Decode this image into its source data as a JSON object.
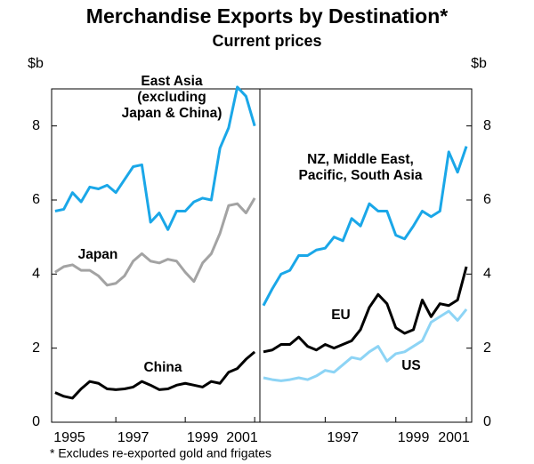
{
  "title": "Merchandise Exports by Destination*",
  "subtitle": "Current prices",
  "footnote": "*    Excludes re-exported gold and frigates",
  "chart_data": [
    {
      "type": "line",
      "y_label": "$b",
      "axis_side": "left",
      "xlim": [
        1995.15,
        2001.15
      ],
      "xticks": [
        1995,
        1997,
        1999,
        2001
      ],
      "ylim": [
        0,
        9
      ],
      "yticks": [
        0,
        2,
        4,
        6,
        8
      ],
      "x": [
        1995.25,
        1995.5,
        1995.75,
        1996,
        1996.25,
        1996.5,
        1996.75,
        1997,
        1997.25,
        1997.5,
        1997.75,
        1998,
        1998.25,
        1998.5,
        1998.75,
        1999,
        1999.25,
        1999.5,
        1999.75,
        2000,
        2000.25,
        2000.5,
        2000.75,
        2001
      ],
      "series": [
        {
          "name": "East Asia\n(excluding\nJapan & China)",
          "color": "#1aa7e8",
          "values": [
            5.7,
            5.75,
            6.2,
            5.95,
            6.35,
            6.3,
            6.4,
            6.2,
            6.55,
            6.9,
            6.95,
            5.4,
            5.65,
            5.2,
            5.7,
            5.7,
            5.95,
            6.05,
            6.0,
            7.4,
            7.95,
            9.05,
            8.8,
            8.0
          ]
        },
        {
          "name": "Japan",
          "color": "#a3a3a3",
          "values": [
            4.05,
            4.2,
            4.25,
            4.1,
            4.1,
            3.95,
            3.7,
            3.75,
            3.95,
            4.35,
            4.55,
            4.35,
            4.3,
            4.4,
            4.35,
            4.05,
            3.8,
            4.3,
            4.55,
            5.1,
            5.85,
            5.9,
            5.65,
            6.05
          ]
        },
        {
          "name": "China",
          "color": "#000000",
          "values": [
            0.8,
            0.7,
            0.65,
            0.9,
            1.1,
            1.05,
            0.9,
            0.88,
            0.9,
            0.95,
            1.1,
            1.0,
            0.88,
            0.9,
            1.0,
            1.05,
            1.0,
            0.95,
            1.1,
            1.05,
            1.35,
            1.45,
            1.7,
            1.9
          ]
        }
      ]
    },
    {
      "type": "line",
      "y_label": "$b",
      "axis_side": "right",
      "xlim": [
        1995.15,
        2001.15
      ],
      "xticks": [
        1997,
        1999,
        2001
      ],
      "ylim": [
        0,
        9
      ],
      "yticks": [
        0,
        2,
        4,
        6,
        8
      ],
      "x": [
        1995.25,
        1995.5,
        1995.75,
        1996,
        1996.25,
        1996.5,
        1996.75,
        1997,
        1997.25,
        1997.5,
        1997.75,
        1998,
        1998.25,
        1998.5,
        1998.75,
        1999,
        1999.25,
        1999.5,
        1999.75,
        2000,
        2000.25,
        2000.5,
        2000.75,
        2001
      ],
      "series": [
        {
          "name": "NZ, Middle East,\nPacific, South Asia",
          "color": "#1aa7e8",
          "values": [
            3.15,
            3.6,
            4.0,
            4.1,
            4.5,
            4.5,
            4.65,
            4.7,
            5.0,
            4.9,
            5.5,
            5.3,
            5.9,
            5.7,
            5.7,
            5.05,
            4.95,
            5.3,
            5.7,
            5.55,
            5.7,
            7.3,
            6.75,
            7.45
          ]
        },
        {
          "name": "EU",
          "color": "#000000",
          "values": [
            1.9,
            1.95,
            2.1,
            2.1,
            2.3,
            2.05,
            1.95,
            2.1,
            2.0,
            2.1,
            2.2,
            2.5,
            3.1,
            3.45,
            3.2,
            2.55,
            2.4,
            2.5,
            3.3,
            2.85,
            3.2,
            3.15,
            3.3,
            4.2
          ]
        },
        {
          "name": "US",
          "color": "#8dd4f5",
          "values": [
            1.2,
            1.15,
            1.12,
            1.15,
            1.2,
            1.15,
            1.25,
            1.4,
            1.35,
            1.55,
            1.75,
            1.7,
            1.9,
            2.05,
            1.65,
            1.85,
            1.9,
            2.05,
            2.2,
            2.7,
            2.85,
            3.0,
            2.75,
            3.05
          ]
        }
      ]
    }
  ]
}
